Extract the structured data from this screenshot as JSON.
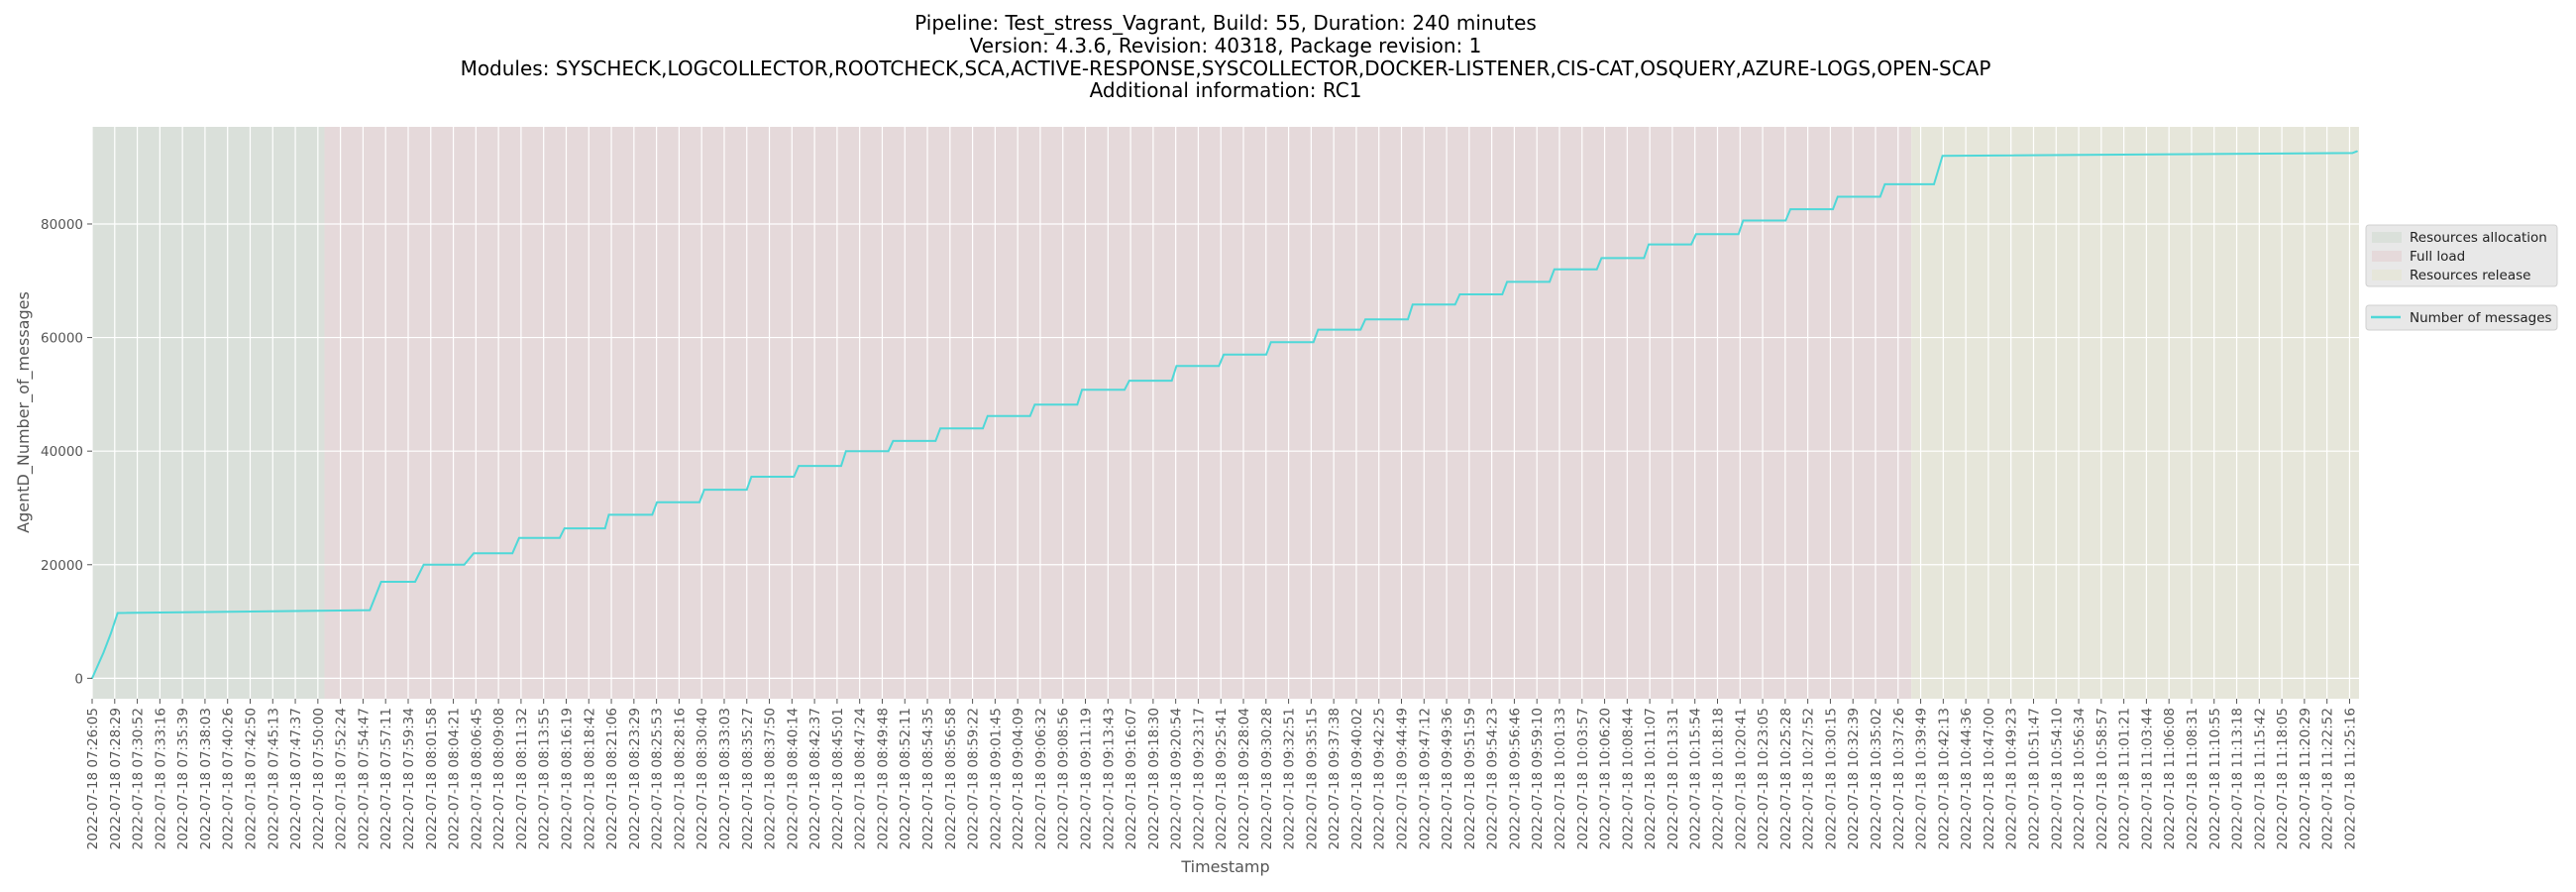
{
  "chart_data": {
    "type": "line",
    "title_lines": [
      "Pipeline: Test_stress_Vagrant, Build: 55, Duration: 240 minutes",
      "Version: 4.3.6, Revision: 40318, Package revision: 1",
      "Modules: SYSCHECK,LOGCOLLECTOR,ROOTCHECK,SCA,ACTIVE-RESPONSE,SYSCOLLECTOR,DOCKER-LISTENER,CIS-CAT,OSQUERY,AZURE-LOGS,OPEN-SCAP",
      "Additional information: RC1"
    ],
    "xlabel": "Timestamp",
    "ylabel": "AgentD_Number_of_messages",
    "x_units": "minutes since 2022-07-18 07:26:05",
    "xlim": [
      0,
      240
    ],
    "ylim": [
      -3600,
      97100
    ],
    "grid": true,
    "y_ticks": [
      0,
      20000,
      40000,
      60000,
      80000
    ],
    "x_tick_step_minutes": 2.39,
    "x_tick_labels": [
      "2022-07-18 07:26:05",
      "2022-07-18 07:28:29",
      "2022-07-18 07:30:52",
      "2022-07-18 07:33:16",
      "2022-07-18 07:35:39",
      "2022-07-18 07:38:03",
      "2022-07-18 07:40:26",
      "2022-07-18 07:42:50",
      "2022-07-18 07:45:13",
      "2022-07-18 07:47:37",
      "2022-07-18 07:50:00",
      "2022-07-18 07:52:24",
      "2022-07-18 07:54:47",
      "2022-07-18 07:57:11",
      "2022-07-18 07:59:34",
      "2022-07-18 08:01:58",
      "2022-07-18 08:04:21",
      "2022-07-18 08:06:45",
      "2022-07-18 08:09:08",
      "2022-07-18 08:11:32",
      "2022-07-18 08:13:55",
      "2022-07-18 08:16:19",
      "2022-07-18 08:18:42",
      "2022-07-18 08:21:06",
      "2022-07-18 08:23:29",
      "2022-07-18 08:25:53",
      "2022-07-18 08:28:16",
      "2022-07-18 08:30:40",
      "2022-07-18 08:33:03",
      "2022-07-18 08:35:27",
      "2022-07-18 08:37:50",
      "2022-07-18 08:40:14",
      "2022-07-18 08:42:37",
      "2022-07-18 08:45:01",
      "2022-07-18 08:47:24",
      "2022-07-18 08:49:48",
      "2022-07-18 08:52:11",
      "2022-07-18 08:54:35",
      "2022-07-18 08:56:58",
      "2022-07-18 08:59:22",
      "2022-07-18 09:01:45",
      "2022-07-18 09:04:09",
      "2022-07-18 09:06:32",
      "2022-07-18 09:08:56",
      "2022-07-18 09:11:19",
      "2022-07-18 09:13:43",
      "2022-07-18 09:16:07",
      "2022-07-18 09:18:30",
      "2022-07-18 09:20:54",
      "2022-07-18 09:23:17",
      "2022-07-18 09:25:41",
      "2022-07-18 09:28:04",
      "2022-07-18 09:30:28",
      "2022-07-18 09:32:51",
      "2022-07-18 09:35:15",
      "2022-07-18 09:37:38",
      "2022-07-18 09:40:02",
      "2022-07-18 09:42:25",
      "2022-07-18 09:44:49",
      "2022-07-18 09:47:12",
      "2022-07-18 09:49:36",
      "2022-07-18 09:51:59",
      "2022-07-18 09:54:23",
      "2022-07-18 09:56:46",
      "2022-07-18 09:59:10",
      "2022-07-18 10:01:33",
      "2022-07-18 10:03:57",
      "2022-07-18 10:06:20",
      "2022-07-18 10:08:44",
      "2022-07-18 10:11:07",
      "2022-07-18 10:13:31",
      "2022-07-18 10:15:54",
      "2022-07-18 10:18:18",
      "2022-07-18 10:20:41",
      "2022-07-18 10:23:05",
      "2022-07-18 10:25:28",
      "2022-07-18 10:27:52",
      "2022-07-18 10:30:15",
      "2022-07-18 10:32:39",
      "2022-07-18 10:35:02",
      "2022-07-18 10:37:26",
      "2022-07-18 10:39:49",
      "2022-07-18 10:42:13",
      "2022-07-18 10:44:36",
      "2022-07-18 10:47:00",
      "2022-07-18 10:49:23",
      "2022-07-18 10:51:47",
      "2022-07-18 10:54:10",
      "2022-07-18 10:56:34",
      "2022-07-18 10:58:57",
      "2022-07-18 11:01:21",
      "2022-07-18 11:03:44",
      "2022-07-18 11:06:08",
      "2022-07-18 11:08:31",
      "2022-07-18 11:10:55",
      "2022-07-18 11:13:18",
      "2022-07-18 11:15:42",
      "2022-07-18 11:18:05",
      "2022-07-18 11:20:29",
      "2022-07-18 11:22:52",
      "2022-07-18 11:25:16"
    ],
    "regions": [
      {
        "name": "Resources allocation",
        "start": 0,
        "end": 24.6,
        "color": "#dae0da"
      },
      {
        "name": "Full load",
        "start": 24.6,
        "end": 192.6,
        "color": "#e5d9da"
      },
      {
        "name": "Resources release",
        "start": 192.6,
        "end": 240,
        "color": "#e6e6da"
      }
    ],
    "series": [
      {
        "name": "Number of messages",
        "color": "#4fd8d8",
        "points": [
          [
            0,
            0
          ],
          [
            1.2,
            4500
          ],
          [
            2.0,
            8000
          ],
          [
            2.7,
            11500
          ],
          [
            29.4,
            12000
          ],
          [
            30.6,
            17000
          ],
          [
            34.2,
            17000
          ],
          [
            35.1,
            20000
          ],
          [
            39.4,
            20000
          ],
          [
            40.4,
            22000
          ],
          [
            44.5,
            22000
          ],
          [
            45.2,
            24700
          ],
          [
            49.5,
            24700
          ],
          [
            50.0,
            26400
          ],
          [
            54.3,
            26400
          ],
          [
            54.7,
            28800
          ],
          [
            59.3,
            28800
          ],
          [
            59.8,
            31000
          ],
          [
            64.3,
            31000
          ],
          [
            64.8,
            33200
          ],
          [
            69.3,
            33200
          ],
          [
            69.8,
            35500
          ],
          [
            74.3,
            35500
          ],
          [
            74.8,
            37400
          ],
          [
            79.3,
            37400
          ],
          [
            79.8,
            40000
          ],
          [
            84.3,
            40000
          ],
          [
            84.8,
            41800
          ],
          [
            89.3,
            41800
          ],
          [
            89.8,
            44000
          ],
          [
            94.3,
            44000
          ],
          [
            94.8,
            46200
          ],
          [
            99.3,
            46200
          ],
          [
            99.8,
            48200
          ],
          [
            104.3,
            48200
          ],
          [
            104.8,
            50800
          ],
          [
            109.3,
            50800
          ],
          [
            109.8,
            52400
          ],
          [
            114.3,
            52400
          ],
          [
            114.8,
            55000
          ],
          [
            119.3,
            55000
          ],
          [
            119.8,
            57000
          ],
          [
            124.3,
            57000
          ],
          [
            124.8,
            59200
          ],
          [
            129.3,
            59200
          ],
          [
            129.8,
            61400
          ],
          [
            134.3,
            61400
          ],
          [
            134.8,
            63200
          ],
          [
            139.3,
            63200
          ],
          [
            139.8,
            65800
          ],
          [
            144.3,
            65800
          ],
          [
            144.8,
            67600
          ],
          [
            149.3,
            67600
          ],
          [
            149.8,
            69800
          ],
          [
            154.3,
            69800
          ],
          [
            154.8,
            72000
          ],
          [
            159.3,
            72000
          ],
          [
            159.8,
            74000
          ],
          [
            164.3,
            74000
          ],
          [
            164.8,
            76400
          ],
          [
            169.3,
            76400
          ],
          [
            169.8,
            78200
          ],
          [
            174.3,
            78200
          ],
          [
            174.8,
            80600
          ],
          [
            179.3,
            80600
          ],
          [
            179.8,
            82600
          ],
          [
            184.3,
            82600
          ],
          [
            184.8,
            84800
          ],
          [
            189.3,
            84800
          ],
          [
            189.8,
            87000
          ],
          [
            195.0,
            87000
          ],
          [
            195.9,
            92000
          ],
          [
            239.3,
            92500
          ],
          [
            239.8,
            92800
          ]
        ]
      }
    ],
    "legend": {
      "placement": "right",
      "regions_entries": [
        "Resources allocation",
        "Full load",
        "Resources release"
      ],
      "series_entries": [
        "Number of messages"
      ]
    }
  }
}
